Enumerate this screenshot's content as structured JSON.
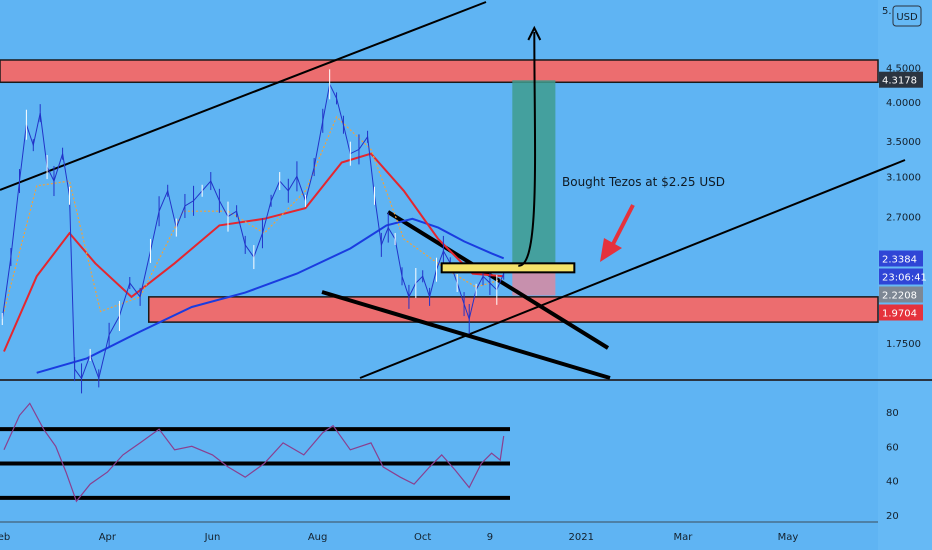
{
  "chart_data": {
    "type": "line",
    "price_axis": {
      "currency": "USD",
      "ticks": [
        {
          "label": "4.5000",
          "value": 4.5
        },
        {
          "label": "4.0000",
          "value": 4.0
        },
        {
          "label": "3.5000",
          "value": 3.5
        },
        {
          "label": "3.1000",
          "value": 3.1
        },
        {
          "label": "2.7000",
          "value": 2.7
        },
        {
          "label": "1.7500",
          "value": 1.75
        }
      ],
      "top_label": "5.",
      "badges": [
        {
          "label": "4.3178",
          "value": 4.3178,
          "color": "#2b3440"
        },
        {
          "label": "2.3384",
          "value": 2.3384,
          "color": "#2f45d6"
        },
        {
          "label": "23:06:41",
          "value": 2.28,
          "color": "#2f45d6"
        },
        {
          "label": "2.2208",
          "value": 2.2208,
          "color": "#7d8794"
        },
        {
          "label": "1.9704",
          "value": 1.9704,
          "color": "#e5323c"
        }
      ]
    },
    "time_axis": {
      "ticks": [
        {
          "label": "eb",
          "date": "2020-02-01"
        },
        {
          "label": "Apr",
          "date": "2020-04-01"
        },
        {
          "label": "Jun",
          "date": "2020-06-01"
        },
        {
          "label": "Aug",
          "date": "2020-08-01"
        },
        {
          "label": "Oct",
          "date": "2020-10-01"
        },
        {
          "label": "9",
          "date": "2020-11-09"
        },
        {
          "label": "2021",
          "date": "2021-01-01"
        },
        {
          "label": "Mar",
          "date": "2021-03-01"
        },
        {
          "label": "May",
          "date": "2021-05-01"
        }
      ]
    },
    "price_series": [
      {
        "date": "2020-01-31",
        "price": 1.9
      },
      {
        "date": "2020-02-05",
        "price": 2.35
      },
      {
        "date": "2020-02-10",
        "price": 3.05
      },
      {
        "date": "2020-02-14",
        "price": 3.7
      },
      {
        "date": "2020-02-18",
        "price": 3.45
      },
      {
        "date": "2020-02-22",
        "price": 3.85
      },
      {
        "date": "2020-02-26",
        "price": 3.2
      },
      {
        "date": "2020-03-01",
        "price": 3.05
      },
      {
        "date": "2020-03-06",
        "price": 3.35
      },
      {
        "date": "2020-03-10",
        "price": 2.9
      },
      {
        "date": "2020-03-13",
        "price": 1.6
      },
      {
        "date": "2020-03-17",
        "price": 1.55
      },
      {
        "date": "2020-03-22",
        "price": 1.68
      },
      {
        "date": "2020-03-27",
        "price": 1.55
      },
      {
        "date": "2020-04-02",
        "price": 1.8
      },
      {
        "date": "2020-04-08",
        "price": 1.92
      },
      {
        "date": "2020-04-14",
        "price": 2.15
      },
      {
        "date": "2020-04-20",
        "price": 2.05
      },
      {
        "date": "2020-04-26",
        "price": 2.4
      },
      {
        "date": "2020-05-01",
        "price": 2.75
      },
      {
        "date": "2020-05-06",
        "price": 2.95
      },
      {
        "date": "2020-05-11",
        "price": 2.6
      },
      {
        "date": "2020-05-16",
        "price": 2.8
      },
      {
        "date": "2020-05-21",
        "price": 2.85
      },
      {
        "date": "2020-05-26",
        "price": 2.95
      },
      {
        "date": "2020-05-31",
        "price": 3.05
      },
      {
        "date": "2020-06-05",
        "price": 2.85
      },
      {
        "date": "2020-06-10",
        "price": 2.7
      },
      {
        "date": "2020-06-15",
        "price": 2.75
      },
      {
        "date": "2020-06-20",
        "price": 2.45
      },
      {
        "date": "2020-06-25",
        "price": 2.35
      },
      {
        "date": "2020-06-30",
        "price": 2.55
      },
      {
        "date": "2020-07-05",
        "price": 2.85
      },
      {
        "date": "2020-07-10",
        "price": 3.05
      },
      {
        "date": "2020-07-15",
        "price": 2.95
      },
      {
        "date": "2020-07-20",
        "price": 3.1
      },
      {
        "date": "2020-07-25",
        "price": 2.85
      },
      {
        "date": "2020-07-30",
        "price": 3.2
      },
      {
        "date": "2020-08-04",
        "price": 3.75
      },
      {
        "date": "2020-08-08",
        "price": 4.25
      },
      {
        "date": "2020-08-12",
        "price": 4.05
      },
      {
        "date": "2020-08-16",
        "price": 3.7
      },
      {
        "date": "2020-08-20",
        "price": 3.35
      },
      {
        "date": "2020-08-25",
        "price": 3.4
      },
      {
        "date": "2020-08-30",
        "price": 3.55
      },
      {
        "date": "2020-09-03",
        "price": 2.9
      },
      {
        "date": "2020-09-07",
        "price": 2.45
      },
      {
        "date": "2020-09-11",
        "price": 2.6
      },
      {
        "date": "2020-09-15",
        "price": 2.5
      },
      {
        "date": "2020-09-19",
        "price": 2.2
      },
      {
        "date": "2020-09-23",
        "price": 2.05
      },
      {
        "date": "2020-09-27",
        "price": 2.15
      },
      {
        "date": "2020-10-01",
        "price": 2.2
      },
      {
        "date": "2020-10-05",
        "price": 2.05
      },
      {
        "date": "2020-10-09",
        "price": 2.25
      },
      {
        "date": "2020-10-13",
        "price": 2.4
      },
      {
        "date": "2020-10-17",
        "price": 2.3
      },
      {
        "date": "2020-10-21",
        "price": 2.15
      },
      {
        "date": "2020-10-25",
        "price": 2.0
      },
      {
        "date": "2020-10-28",
        "price": 1.9
      },
      {
        "date": "2020-11-01",
        "price": 2.1
      },
      {
        "date": "2020-11-05",
        "price": 2.2
      },
      {
        "date": "2020-11-09",
        "price": 2.15
      },
      {
        "date": "2020-11-13",
        "price": 2.1
      },
      {
        "date": "2020-11-17",
        "price": 2.22
      }
    ],
    "sma_slow": [
      {
        "date": "2020-02-20",
        "price": 1.58
      },
      {
        "date": "2020-03-20",
        "price": 1.66
      },
      {
        "date": "2020-04-20",
        "price": 1.82
      },
      {
        "date": "2020-05-20",
        "price": 1.98
      },
      {
        "date": "2020-06-20",
        "price": 2.08
      },
      {
        "date": "2020-07-20",
        "price": 2.22
      },
      {
        "date": "2020-08-20",
        "price": 2.42
      },
      {
        "date": "2020-09-10",
        "price": 2.62
      },
      {
        "date": "2020-09-25",
        "price": 2.68
      },
      {
        "date": "2020-10-10",
        "price": 2.6
      },
      {
        "date": "2020-10-25",
        "price": 2.48
      },
      {
        "date": "2020-11-10",
        "price": 2.38
      },
      {
        "date": "2020-11-17",
        "price": 2.34
      }
    ],
    "sma_mid": [
      {
        "date": "2020-02-01",
        "price": 1.7
      },
      {
        "date": "2020-02-20",
        "price": 2.2
      },
      {
        "date": "2020-03-10",
        "price": 2.55
      },
      {
        "date": "2020-03-25",
        "price": 2.3
      },
      {
        "date": "2020-04-15",
        "price": 2.05
      },
      {
        "date": "2020-05-10",
        "price": 2.3
      },
      {
        "date": "2020-06-05",
        "price": 2.62
      },
      {
        "date": "2020-07-01",
        "price": 2.68
      },
      {
        "date": "2020-07-25",
        "price": 2.78
      },
      {
        "date": "2020-08-15",
        "price": 3.25
      },
      {
        "date": "2020-09-01",
        "price": 3.35
      },
      {
        "date": "2020-09-20",
        "price": 2.95
      },
      {
        "date": "2020-10-10",
        "price": 2.5
      },
      {
        "date": "2020-10-30",
        "price": 2.22
      },
      {
        "date": "2020-11-17",
        "price": 2.2
      }
    ],
    "sma_fast": [
      {
        "date": "2020-02-01",
        "price": 1.95
      },
      {
        "date": "2020-02-20",
        "price": 3.0
      },
      {
        "date": "2020-03-10",
        "price": 3.05
      },
      {
        "date": "2020-03-28",
        "price": 1.95
      },
      {
        "date": "2020-04-20",
        "price": 2.05
      },
      {
        "date": "2020-05-15",
        "price": 2.75
      },
      {
        "date": "2020-06-10",
        "price": 2.75
      },
      {
        "date": "2020-07-01",
        "price": 2.55
      },
      {
        "date": "2020-07-25",
        "price": 2.95
      },
      {
        "date": "2020-08-12",
        "price": 3.8
      },
      {
        "date": "2020-09-01",
        "price": 3.4
      },
      {
        "date": "2020-09-20",
        "price": 2.5
      },
      {
        "date": "2020-10-15",
        "price": 2.25
      },
      {
        "date": "2020-11-01",
        "price": 2.12
      },
      {
        "date": "2020-11-17",
        "price": 2.18
      }
    ],
    "zones": [
      {
        "name": "resistance",
        "from_date": "2020-01-20",
        "to_date": "2021-06-30",
        "low": 4.28,
        "high": 4.62
      },
      {
        "name": "support",
        "from_date": "2020-04-25",
        "to_date": "2021-06-30",
        "low": 1.88,
        "high": 2.05
      },
      {
        "name": "entry",
        "from_date": "2020-10-12",
        "to_date": "2020-12-28",
        "low": 2.23,
        "high": 2.3
      }
    ],
    "position": {
      "entry": 2.25,
      "target": 4.31,
      "stop": 2.06,
      "from_date": "2020-11-22",
      "to_date": "2020-12-17"
    },
    "annotation": "Bought Tezos at $2.25 USD",
    "rsi": {
      "ticks": [
        80,
        60,
        40,
        20
      ],
      "levels": [
        70,
        50,
        30
      ],
      "values": [
        {
          "date": "2020-02-01",
          "v": 58
        },
        {
          "date": "2020-02-10",
          "v": 78
        },
        {
          "date": "2020-02-16",
          "v": 85
        },
        {
          "date": "2020-02-24",
          "v": 70
        },
        {
          "date": "2020-03-02",
          "v": 60
        },
        {
          "date": "2020-03-08",
          "v": 45
        },
        {
          "date": "2020-03-14",
          "v": 28
        },
        {
          "date": "2020-03-22",
          "v": 38
        },
        {
          "date": "2020-04-01",
          "v": 45
        },
        {
          "date": "2020-04-10",
          "v": 55
        },
        {
          "date": "2020-04-20",
          "v": 62
        },
        {
          "date": "2020-05-01",
          "v": 70
        },
        {
          "date": "2020-05-10",
          "v": 58
        },
        {
          "date": "2020-05-20",
          "v": 60
        },
        {
          "date": "2020-06-01",
          "v": 55
        },
        {
          "date": "2020-06-10",
          "v": 48
        },
        {
          "date": "2020-06-20",
          "v": 42
        },
        {
          "date": "2020-07-01",
          "v": 50
        },
        {
          "date": "2020-07-12",
          "v": 62
        },
        {
          "date": "2020-07-24",
          "v": 55
        },
        {
          "date": "2020-08-04",
          "v": 68
        },
        {
          "date": "2020-08-10",
          "v": 72
        },
        {
          "date": "2020-08-20",
          "v": 58
        },
        {
          "date": "2020-09-01",
          "v": 62
        },
        {
          "date": "2020-09-08",
          "v": 48
        },
        {
          "date": "2020-09-18",
          "v": 42
        },
        {
          "date": "2020-09-26",
          "v": 38
        },
        {
          "date": "2020-10-05",
          "v": 48
        },
        {
          "date": "2020-10-12",
          "v": 55
        },
        {
          "date": "2020-10-20",
          "v": 46
        },
        {
          "date": "2020-10-28",
          "v": 36
        },
        {
          "date": "2020-11-04",
          "v": 50
        },
        {
          "date": "2020-11-10",
          "v": 56
        },
        {
          "date": "2020-11-15",
          "v": 52
        },
        {
          "date": "2020-11-17",
          "v": 66
        }
      ]
    }
  }
}
